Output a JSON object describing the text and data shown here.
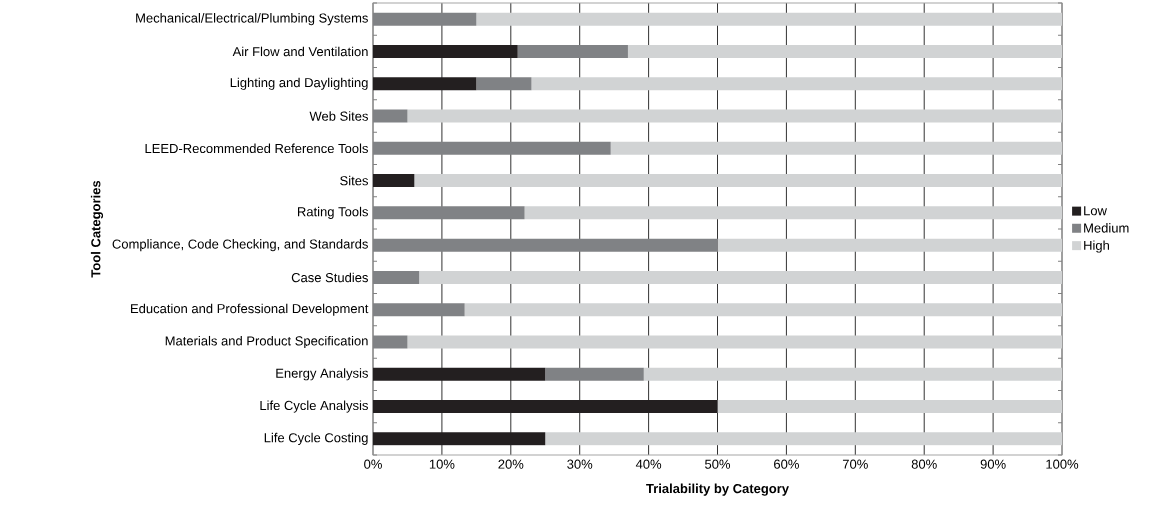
{
  "chart_data": {
    "type": "bar",
    "orientation": "horizontal",
    "stacked": true,
    "xlabel": "Trialability by Category",
    "ylabel": "Tool Categories",
    "categories": [
      "Mechanical/Electrical/Plumbing Systems",
      "Air Flow and Ventilation",
      "Lighting and Daylighting",
      "Web Sites",
      "LEED-Recommended Reference Tools",
      "Sites",
      "Rating Tools",
      "Compliance, Code Checking, and Standards",
      "Case Studies",
      "Education and Professional Development",
      "Materials and Product Specification",
      "Energy Analysis",
      "Life Cycle Analysis",
      "Life Cycle Costing"
    ],
    "series": [
      {
        "name": "Low",
        "color": "#231f20",
        "values": [
          0,
          21,
          15,
          0,
          0,
          6,
          0,
          0,
          0,
          0,
          0,
          25,
          50,
          25
        ]
      },
      {
        "name": "Medium",
        "color": "#808285",
        "values": [
          15,
          16,
          8,
          5,
          34.5,
          0,
          22,
          50,
          6.7,
          13.3,
          5,
          14.3,
          0,
          0
        ]
      },
      {
        "name": "High",
        "color": "#d1d3d4",
        "values": [
          85,
          63,
          77,
          95,
          65.5,
          94,
          78,
          50,
          93.3,
          86.7,
          95,
          60.7,
          50,
          75
        ]
      }
    ],
    "xlim": [
      0,
      100
    ],
    "xticks": [
      {
        "value": 0,
        "label": "0%"
      },
      {
        "value": 10,
        "label": "10%"
      },
      {
        "value": 20,
        "label": "20%"
      },
      {
        "value": 30,
        "label": "30%"
      },
      {
        "value": 40,
        "label": "40%"
      },
      {
        "value": 50,
        "label": "50%"
      },
      {
        "value": 60,
        "label": "60%"
      },
      {
        "value": 70,
        "label": "70%"
      },
      {
        "value": 80,
        "label": "80%"
      },
      {
        "value": 90,
        "label": "90%"
      },
      {
        "value": 100,
        "label": "100%"
      }
    ],
    "grid": "x",
    "legend": "right"
  }
}
